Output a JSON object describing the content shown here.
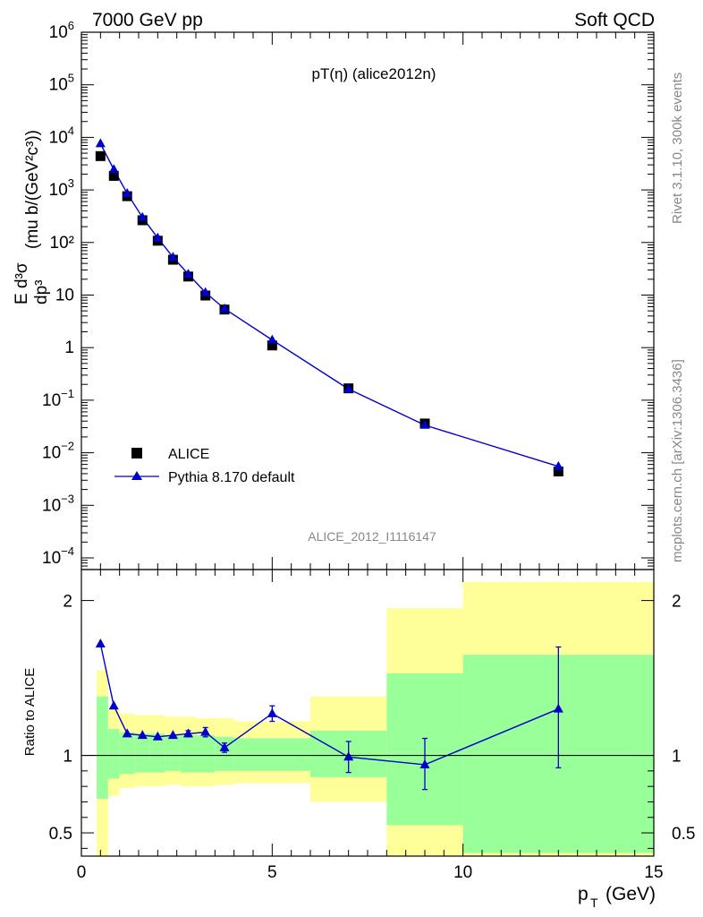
{
  "header": {
    "left": "7000 GeV pp",
    "right": "Soft QCD"
  },
  "side_labels": {
    "rivet": "Rivet 3.1.10,  300k events",
    "mcplots": "mcplots.cern.ch [arXiv:1306.3436]"
  },
  "colors": {
    "data": "#000000",
    "mc": "#0000cc",
    "band_outer": "#ffff99",
    "band_inner": "#99ff99"
  },
  "chart_data": [
    {
      "type": "scatter",
      "title": "pT(η) (alice2012n)",
      "watermark": "ALICE_2012_I1116147",
      "ylabel_parts": {
        "numer": "E d³σ",
        "denom": "dp³",
        "units": "(mu b/(GeV²c³))"
      },
      "yscale": "log",
      "xlim": [
        0,
        15
      ],
      "ylim": [
        6e-05,
        1000000
      ],
      "yticks": [
        {
          "v": 1000000,
          "base": "10",
          "exp": "6"
        },
        {
          "v": 100000,
          "base": "10",
          "exp": "5"
        },
        {
          "v": 10000,
          "base": "10",
          "exp": "4"
        },
        {
          "v": 1000,
          "base": "10",
          "exp": "3"
        },
        {
          "v": 100,
          "base": "10²",
          "exp": ""
        },
        {
          "v": 10,
          "base": "10",
          "exp": ""
        },
        {
          "v": 1,
          "base": "1",
          "exp": ""
        },
        {
          "v": 0.1,
          "base": "10",
          "exp": "−1"
        },
        {
          "v": 0.01,
          "base": "10",
          "exp": "−2"
        },
        {
          "v": 0.001,
          "base": "10",
          "exp": "−3"
        },
        {
          "v": 0.0001,
          "base": "10",
          "exp": "−4"
        }
      ],
      "legend_position": "bottom-left",
      "series": [
        {
          "name": "ALICE",
          "marker": "square",
          "x": [
            0.5,
            0.85,
            1.2,
            1.6,
            2.0,
            2.4,
            2.8,
            3.25,
            3.75,
            5.0,
            7.0,
            9.0,
            12.5
          ],
          "y": [
            4400,
            1850,
            760,
            265,
            108,
            47,
            22.5,
            9.8,
            5.3,
            1.1,
            0.168,
            0.036,
            0.0044
          ]
        },
        {
          "name": "Pythia 8.170 default",
          "marker": "triangle",
          "x": [
            0.5,
            0.85,
            1.2,
            1.6,
            2.0,
            2.4,
            2.8,
            3.25,
            3.75,
            5.0,
            7.0,
            9.0,
            12.5
          ],
          "y": [
            7600,
            2450,
            860,
            300,
            122,
            52.5,
            25,
            11.2,
            5.5,
            1.4,
            0.163,
            0.0335,
            0.0055
          ]
        }
      ]
    },
    {
      "type": "scatter",
      "ylabel": "Ratio to ALICE",
      "xlabel_main": "p",
      "xlabel_sub": "T",
      "xlabel_unit": "(GeV)",
      "xlim": [
        0,
        15
      ],
      "ylim": [
        0.35,
        2.2
      ],
      "xticks": [
        {
          "v": 0,
          "label": "0"
        },
        {
          "v": 5,
          "label": "5"
        },
        {
          "v": 10,
          "label": "10"
        },
        {
          "v": 15,
          "label": "15"
        }
      ],
      "yticks": [
        {
          "v": 0.5,
          "label": "0.5"
        },
        {
          "v": 1,
          "label": "1"
        },
        {
          "v": 2,
          "label": "2"
        }
      ],
      "bands": [
        {
          "x0": 0.4,
          "x1": 0.7,
          "outer_lo": 0.35,
          "outer_hi": 1.55,
          "inner_lo": 0.72,
          "inner_hi": 1.38
        },
        {
          "x0": 0.7,
          "x1": 1.0,
          "outer_lo": 0.74,
          "outer_hi": 1.3,
          "inner_lo": 0.85,
          "inner_hi": 1.17
        },
        {
          "x0": 1.0,
          "x1": 1.4,
          "outer_lo": 0.79,
          "outer_hi": 1.27,
          "inner_lo": 0.88,
          "inner_hi": 1.15
        },
        {
          "x0": 1.4,
          "x1": 1.8,
          "outer_lo": 0.8,
          "outer_hi": 1.26,
          "inner_lo": 0.89,
          "inner_hi": 1.14
        },
        {
          "x0": 1.8,
          "x1": 2.2,
          "outer_lo": 0.8,
          "outer_hi": 1.26,
          "inner_lo": 0.89,
          "inner_hi": 1.14
        },
        {
          "x0": 2.2,
          "x1": 2.6,
          "outer_lo": 0.81,
          "outer_hi": 1.25,
          "inner_lo": 0.9,
          "inner_hi": 1.13
        },
        {
          "x0": 2.6,
          "x1": 3.0,
          "outer_lo": 0.8,
          "outer_hi": 1.25,
          "inner_lo": 0.89,
          "inner_hi": 1.13
        },
        {
          "x0": 3.0,
          "x1": 3.5,
          "outer_lo": 0.8,
          "outer_hi": 1.24,
          "inner_lo": 0.89,
          "inner_hi": 1.13
        },
        {
          "x0": 3.5,
          "x1": 4.0,
          "outer_lo": 0.81,
          "outer_hi": 1.24,
          "inner_lo": 0.9,
          "inner_hi": 1.12
        },
        {
          "x0": 4.0,
          "x1": 6.0,
          "outer_lo": 0.82,
          "outer_hi": 1.22,
          "inner_lo": 0.9,
          "inner_hi": 1.11
        },
        {
          "x0": 6.0,
          "x1": 8.0,
          "outer_lo": 0.7,
          "outer_hi": 1.38,
          "inner_lo": 0.86,
          "inner_hi": 1.16
        },
        {
          "x0": 8.0,
          "x1": 10.0,
          "outer_lo": 0.35,
          "outer_hi": 1.95,
          "inner_lo": 0.55,
          "inner_hi": 1.53
        },
        {
          "x0": 10.0,
          "x1": 15.0,
          "outer_lo": 0.35,
          "outer_hi": 2.12,
          "inner_lo": 0.37,
          "inner_hi": 1.65
        }
      ],
      "series": [
        {
          "name": "Pythia 8.170 default",
          "marker": "triangle",
          "x": [
            0.5,
            0.85,
            1.2,
            1.6,
            2.0,
            2.4,
            2.8,
            3.25,
            3.75,
            5.0,
            7.0,
            9.0,
            12.5
          ],
          "y": [
            1.72,
            1.32,
            1.14,
            1.13,
            1.12,
            1.13,
            1.14,
            1.15,
            1.05,
            1.27,
            0.99,
            0.94,
            1.3
          ],
          "err_lo": [
            0,
            0,
            0,
            0,
            0,
            0,
            0.02,
            0.03,
            0.03,
            0.05,
            0.1,
            0.16,
            0.38
          ],
          "err_hi": [
            0,
            0,
            0,
            0,
            0,
            0,
            0.02,
            0.03,
            0.03,
            0.05,
            0.1,
            0.17,
            0.4
          ]
        }
      ]
    }
  ]
}
